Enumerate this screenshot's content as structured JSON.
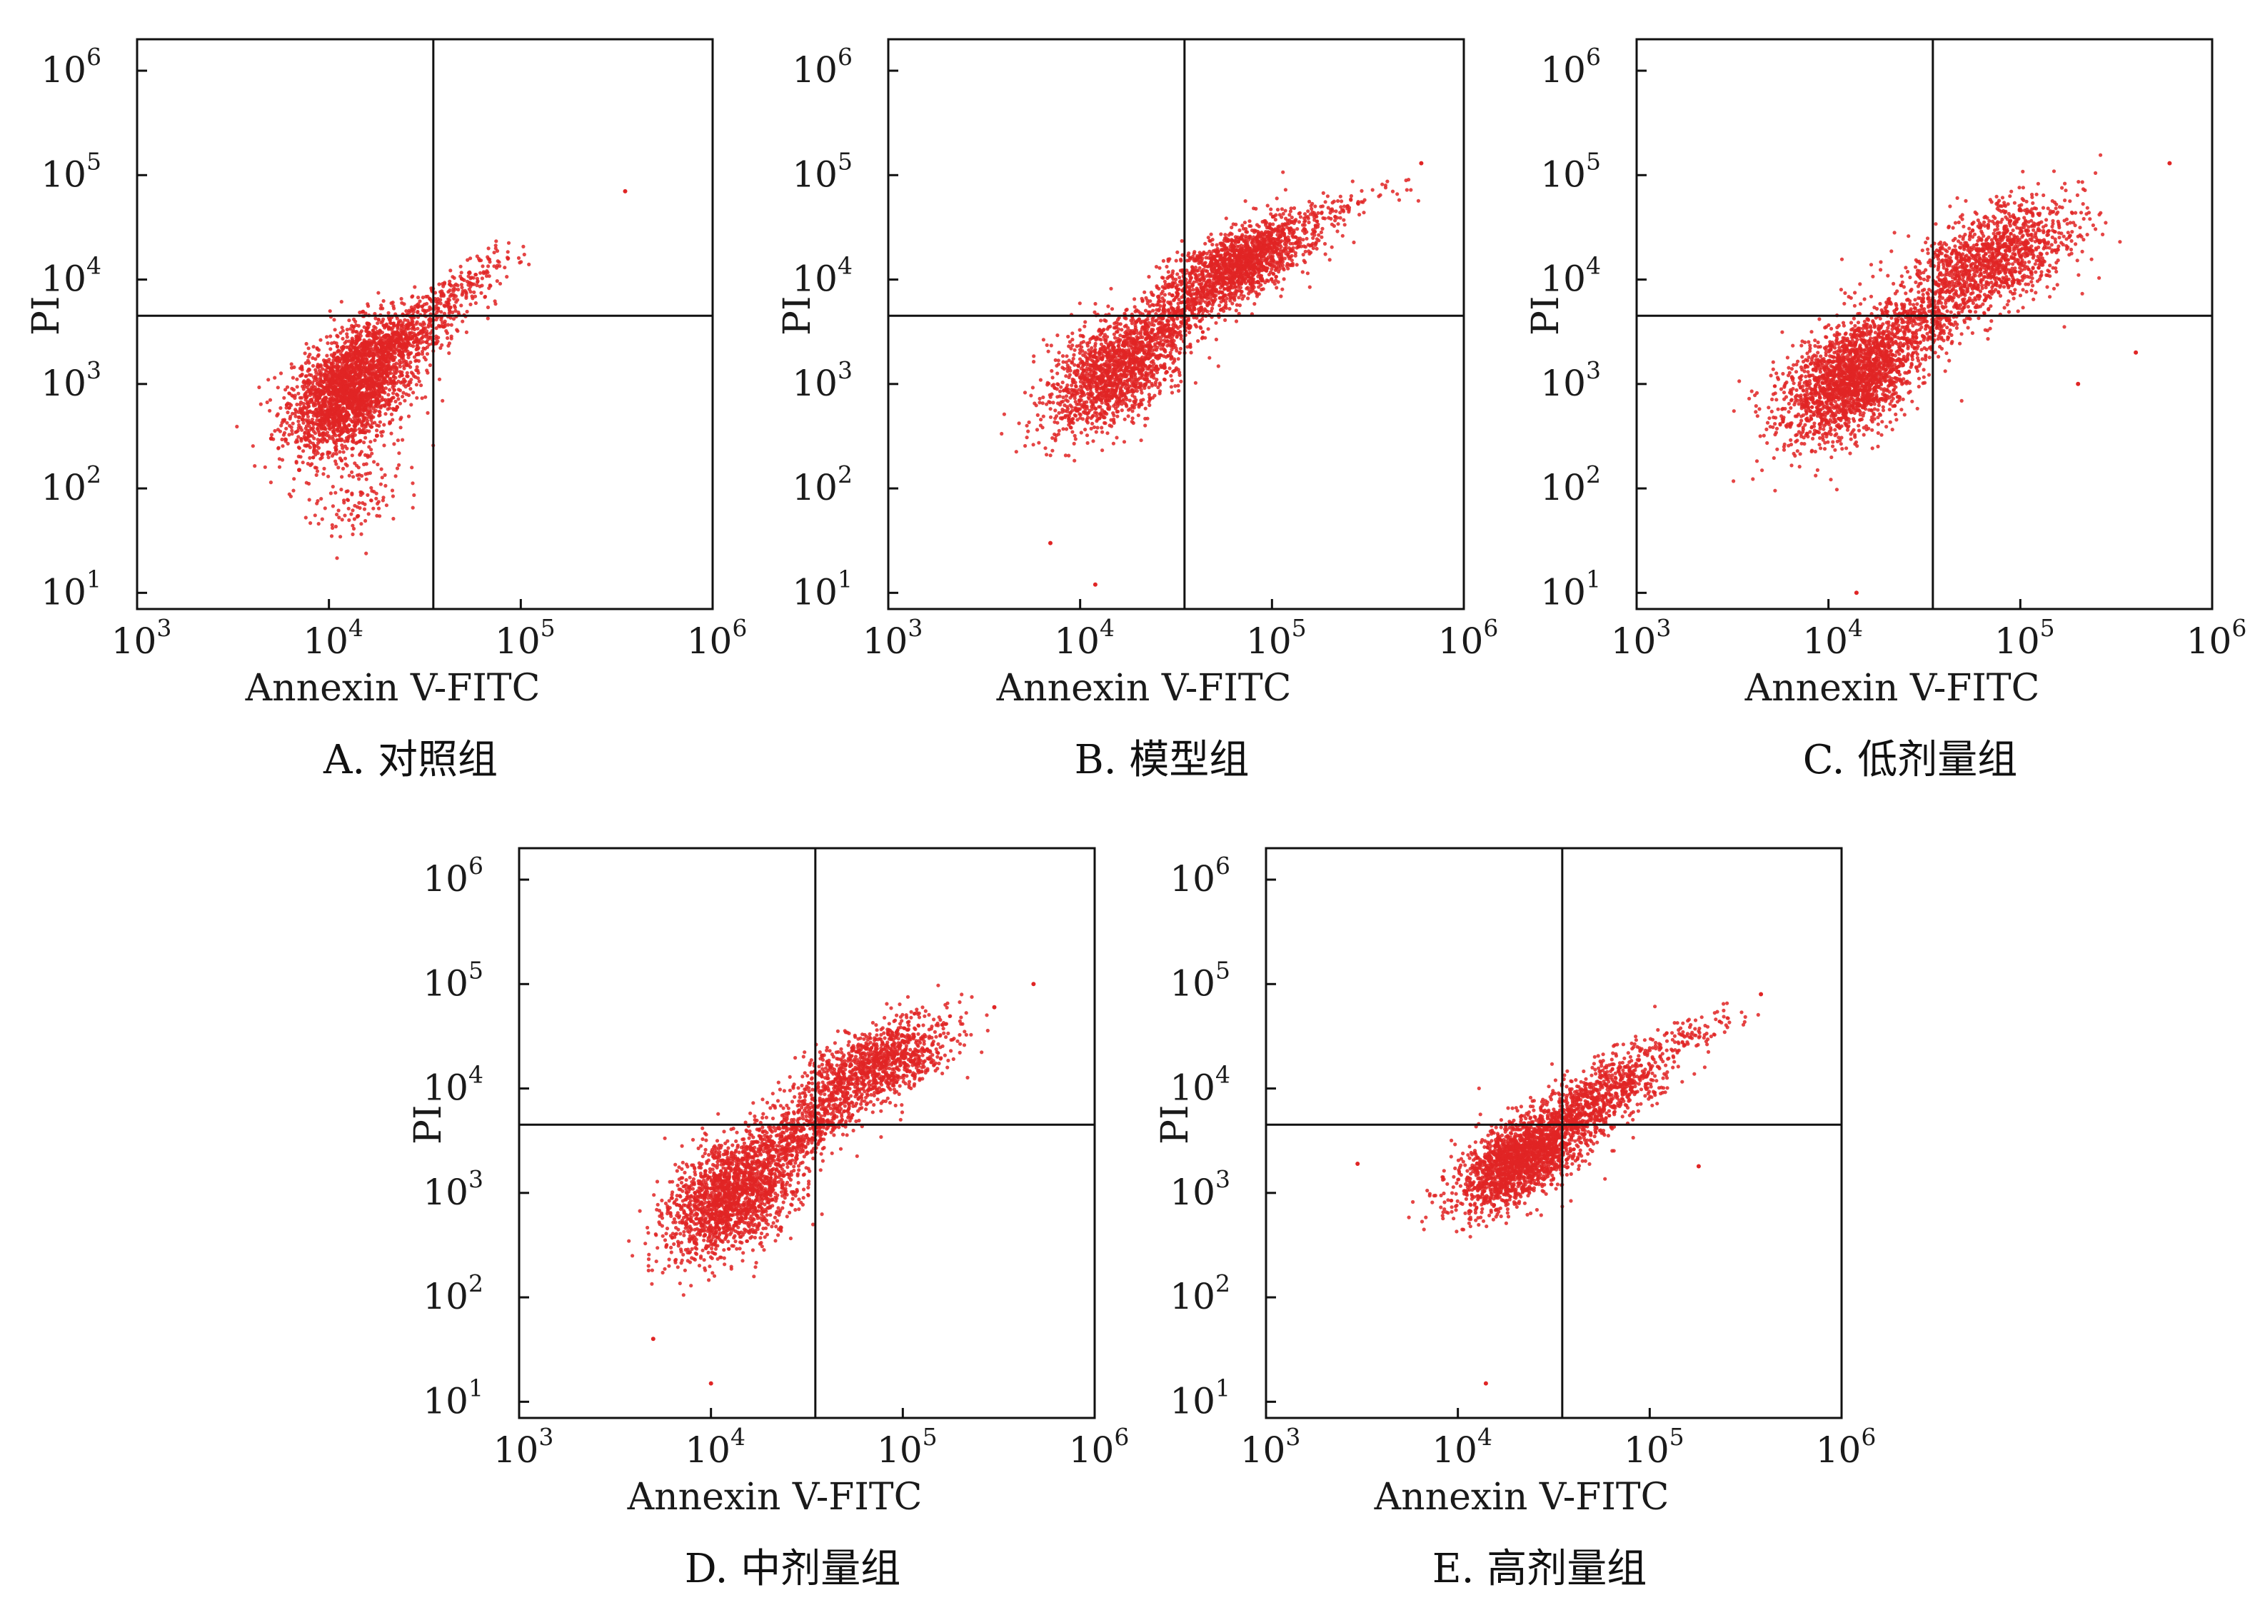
{
  "figure_colors": {
    "dots": "#e02525",
    "axes": "#111111"
  },
  "chart_data": [
    {
      "type": "scatter",
      "caption": "A. 对照组",
      "xlabel": "Annexin V-FITC",
      "ylabel": "PI",
      "x_scale": "log",
      "y_scale": "log",
      "xlim": [
        1000,
        1000000
      ],
      "ylim": [
        7,
        2000000
      ],
      "x_ticks": [
        {
          "base": "10",
          "exp": "3"
        },
        {
          "base": "10",
          "exp": "4"
        },
        {
          "base": "10",
          "exp": "5"
        },
        {
          "base": "10",
          "exp": "6"
        }
      ],
      "y_ticks": [
        {
          "base": "10",
          "exp": "1"
        },
        {
          "base": "10",
          "exp": "2"
        },
        {
          "base": "10",
          "exp": "3"
        },
        {
          "base": "10",
          "exp": "4"
        },
        {
          "base": "10",
          "exp": "5"
        },
        {
          "base": "10",
          "exp": "6"
        }
      ],
      "gate_x": 35000,
      "gate_y": 4500,
      "clusters": [
        {
          "cx": 13000,
          "cy": 900,
          "n": 2400,
          "sx": 0.16,
          "sy": 0.3,
          "rho": 0.45
        },
        {
          "cx": 25000,
          "cy": 3000,
          "n": 500,
          "sx": 0.16,
          "sy": 0.18,
          "rho": 0.65
        },
        {
          "cx": 50000,
          "cy": 9000,
          "n": 160,
          "sx": 0.16,
          "sy": 0.16,
          "rho": 0.75
        },
        {
          "cx": 14000,
          "cy": 80,
          "n": 120,
          "sx": 0.13,
          "sy": 0.25,
          "rho": 0.2
        }
      ],
      "outliers": [
        [
          350000,
          70000
        ],
        [
          5000,
          300
        ],
        [
          7000,
          150
        ]
      ]
    },
    {
      "type": "scatter",
      "caption": "B. 模型组",
      "xlabel": "Annexin V-FITC",
      "ylabel": "PI",
      "x_scale": "log",
      "y_scale": "log",
      "xlim": [
        1000,
        1000000
      ],
      "ylim": [
        7,
        2000000
      ],
      "x_ticks": [
        {
          "base": "10",
          "exp": "3"
        },
        {
          "base": "10",
          "exp": "4"
        },
        {
          "base": "10",
          "exp": "5"
        },
        {
          "base": "10",
          "exp": "6"
        }
      ],
      "y_ticks": [
        {
          "base": "10",
          "exp": "1"
        },
        {
          "base": "10",
          "exp": "2"
        },
        {
          "base": "10",
          "exp": "3"
        },
        {
          "base": "10",
          "exp": "4"
        },
        {
          "base": "10",
          "exp": "5"
        },
        {
          "base": "10",
          "exp": "6"
        }
      ],
      "gate_x": 35000,
      "gate_y": 4500,
      "clusters": [
        {
          "cx": 15000,
          "cy": 1300,
          "n": 1500,
          "sx": 0.17,
          "sy": 0.28,
          "rho": 0.45
        },
        {
          "cx": 65000,
          "cy": 14000,
          "n": 1600,
          "sx": 0.19,
          "sy": 0.22,
          "rho": 0.65
        },
        {
          "cx": 180000,
          "cy": 40000,
          "n": 120,
          "sx": 0.2,
          "sy": 0.16,
          "rho": 0.8
        },
        {
          "cx": 30000,
          "cy": 4000,
          "n": 300,
          "sx": 0.14,
          "sy": 0.16,
          "rho": 0.6
        }
      ],
      "outliers": [
        [
          600000,
          130000
        ],
        [
          7000,
          30
        ],
        [
          12000,
          12
        ]
      ]
    },
    {
      "type": "scatter",
      "caption": "C. 低剂量组",
      "xlabel": "Annexin V-FITC",
      "ylabel": "PI",
      "x_scale": "log",
      "y_scale": "log",
      "xlim": [
        1000,
        1000000
      ],
      "ylim": [
        7,
        2000000
      ],
      "x_ticks": [
        {
          "base": "10",
          "exp": "3"
        },
        {
          "base": "10",
          "exp": "4"
        },
        {
          "base": "10",
          "exp": "5"
        },
        {
          "base": "10",
          "exp": "6"
        }
      ],
      "y_ticks": [
        {
          "base": "10",
          "exp": "1"
        },
        {
          "base": "10",
          "exp": "2"
        },
        {
          "base": "10",
          "exp": "3"
        },
        {
          "base": "10",
          "exp": "4"
        },
        {
          "base": "10",
          "exp": "5"
        },
        {
          "base": "10",
          "exp": "6"
        }
      ],
      "gate_x": 35000,
      "gate_y": 4500,
      "clusters": [
        {
          "cx": 13000,
          "cy": 1100,
          "n": 2000,
          "sx": 0.18,
          "sy": 0.3,
          "rho": 0.45
        },
        {
          "cx": 70000,
          "cy": 16000,
          "n": 1300,
          "sx": 0.22,
          "sy": 0.28,
          "rho": 0.5
        },
        {
          "cx": 30000,
          "cy": 4000,
          "n": 350,
          "sx": 0.15,
          "sy": 0.2,
          "rho": 0.55
        }
      ],
      "outliers": [
        [
          600000,
          130000
        ],
        [
          400000,
          2000
        ],
        [
          200000,
          1000
        ],
        [
          14000,
          10
        ]
      ]
    },
    {
      "type": "scatter",
      "caption": "D. 中剂量组",
      "xlabel": "Annexin V-FITC",
      "ylabel": "PI",
      "x_scale": "log",
      "y_scale": "log",
      "xlim": [
        1000,
        1000000
      ],
      "ylim": [
        7,
        2000000
      ],
      "x_ticks": [
        {
          "base": "10",
          "exp": "3"
        },
        {
          "base": "10",
          "exp": "4"
        },
        {
          "base": "10",
          "exp": "5"
        },
        {
          "base": "10",
          "exp": "6"
        }
      ],
      "y_ticks": [
        {
          "base": "10",
          "exp": "1"
        },
        {
          "base": "10",
          "exp": "2"
        },
        {
          "base": "10",
          "exp": "3"
        },
        {
          "base": "10",
          "exp": "4"
        },
        {
          "base": "10",
          "exp": "5"
        },
        {
          "base": "10",
          "exp": "6"
        }
      ],
      "gate_x": 35000,
      "gate_y": 4500,
      "clusters": [
        {
          "cx": 13000,
          "cy": 1000,
          "n": 1900,
          "sx": 0.17,
          "sy": 0.3,
          "rho": 0.45
        },
        {
          "cx": 70000,
          "cy": 16000,
          "n": 1200,
          "sx": 0.2,
          "sy": 0.24,
          "rho": 0.6
        },
        {
          "cx": 30000,
          "cy": 4000,
          "n": 400,
          "sx": 0.14,
          "sy": 0.18,
          "rho": 0.6
        }
      ],
      "outliers": [
        [
          480000,
          100000
        ],
        [
          300000,
          60000
        ],
        [
          5000,
          40
        ],
        [
          10000,
          15
        ]
      ]
    },
    {
      "type": "scatter",
      "caption": "E. 高剂量组",
      "xlabel": "Annexin V-FITC",
      "ylabel": "PI",
      "x_scale": "log",
      "y_scale": "log",
      "xlim": [
        1000,
        1000000
      ],
      "ylim": [
        7,
        2000000
      ],
      "x_ticks": [
        {
          "base": "10",
          "exp": "3"
        },
        {
          "base": "10",
          "exp": "4"
        },
        {
          "base": "10",
          "exp": "5"
        },
        {
          "base": "10",
          "exp": "6"
        }
      ],
      "y_ticks": [
        {
          "base": "10",
          "exp": "1"
        },
        {
          "base": "10",
          "exp": "2"
        },
        {
          "base": "10",
          "exp": "3"
        },
        {
          "base": "10",
          "exp": "4"
        },
        {
          "base": "10",
          "exp": "5"
        },
        {
          "base": "10",
          "exp": "6"
        }
      ],
      "gate_x": 35000,
      "gate_y": 4500,
      "clusters": [
        {
          "cx": 22000,
          "cy": 2200,
          "n": 2000,
          "sx": 0.17,
          "sy": 0.24,
          "rho": 0.6
        },
        {
          "cx": 60000,
          "cy": 9000,
          "n": 700,
          "sx": 0.17,
          "sy": 0.22,
          "rho": 0.65
        },
        {
          "cx": 150000,
          "cy": 30000,
          "n": 120,
          "sx": 0.18,
          "sy": 0.15,
          "rho": 0.8
        }
      ],
      "outliers": [
        [
          380000,
          80000
        ],
        [
          3000,
          1900
        ],
        [
          14000,
          15
        ],
        [
          180000,
          1800
        ]
      ]
    }
  ]
}
